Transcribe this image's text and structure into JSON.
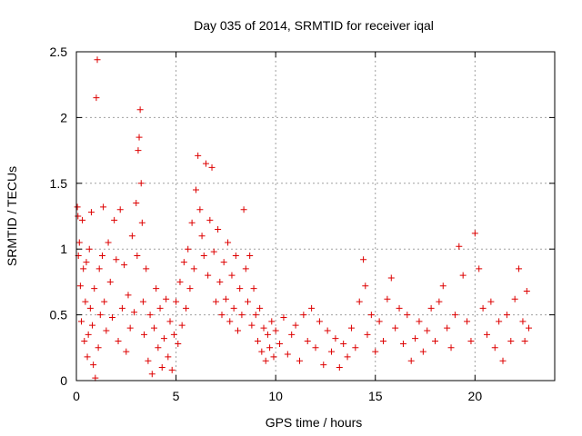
{
  "chart_data": {
    "type": "scatter",
    "title": "Day 035 of 2014, SRMTID for receiver iqal",
    "xlabel": "GPS time / hours",
    "ylabel": "SRMTID / TECUs",
    "xlim": [
      0,
      24
    ],
    "ylim": [
      0,
      2.5
    ],
    "xticks": [
      0,
      5,
      10,
      15,
      20
    ],
    "yticks": [
      0,
      0.5,
      1,
      1.5,
      2,
      2.5
    ],
    "xtick_labels": [
      "0",
      "5",
      "10",
      "15",
      "20"
    ],
    "ytick_labels": [
      "0",
      "0.5",
      "1",
      "1.5",
      "2",
      "2.5"
    ],
    "grid": true,
    "marker": "+",
    "color": "#dd0000",
    "series": [
      {
        "name": "SRMTID",
        "points": [
          [
            0.05,
            1.32
          ],
          [
            0.08,
            1.25
          ],
          [
            0.1,
            0.95
          ],
          [
            0.15,
            1.05
          ],
          [
            0.2,
            0.72
          ],
          [
            0.25,
            0.45
          ],
          [
            0.3,
            1.22
          ],
          [
            0.35,
            0.85
          ],
          [
            0.4,
            0.3
          ],
          [
            0.45,
            0.6
          ],
          [
            0.5,
            0.9
          ],
          [
            0.55,
            0.18
          ],
          [
            0.6,
            0.35
          ],
          [
            0.65,
            1.0
          ],
          [
            0.7,
            0.55
          ],
          [
            0.75,
            1.28
          ],
          [
            0.8,
            0.42
          ],
          [
            0.85,
            0.12
          ],
          [
            0.9,
            0.7
          ],
          [
            0.95,
            0.02
          ],
          [
            1.0,
            2.15
          ],
          [
            1.05,
            2.44
          ],
          [
            1.1,
            0.25
          ],
          [
            1.15,
            0.85
          ],
          [
            1.2,
            0.5
          ],
          [
            1.3,
            0.95
          ],
          [
            1.35,
            1.32
          ],
          [
            1.4,
            0.6
          ],
          [
            1.5,
            0.38
          ],
          [
            1.6,
            1.05
          ],
          [
            1.7,
            0.75
          ],
          [
            1.8,
            0.48
          ],
          [
            1.9,
            1.22
          ],
          [
            2.0,
            0.92
          ],
          [
            2.1,
            0.3
          ],
          [
            2.2,
            1.3
          ],
          [
            2.3,
            0.55
          ],
          [
            2.4,
            0.88
          ],
          [
            2.5,
            0.22
          ],
          [
            2.6,
            0.65
          ],
          [
            2.7,
            0.4
          ],
          [
            2.8,
            1.1
          ],
          [
            2.9,
            0.52
          ],
          [
            3.0,
            1.35
          ],
          [
            3.05,
            0.95
          ],
          [
            3.1,
            1.75
          ],
          [
            3.15,
            1.85
          ],
          [
            3.2,
            2.06
          ],
          [
            3.25,
            1.5
          ],
          [
            3.3,
            1.2
          ],
          [
            3.35,
            0.6
          ],
          [
            3.4,
            0.35
          ],
          [
            3.5,
            0.85
          ],
          [
            3.6,
            0.15
          ],
          [
            3.7,
            0.5
          ],
          [
            3.8,
            0.05
          ],
          [
            3.9,
            0.4
          ],
          [
            4.0,
            0.7
          ],
          [
            4.1,
            0.25
          ],
          [
            4.2,
            0.55
          ],
          [
            4.3,
            0.1
          ],
          [
            4.4,
            0.32
          ],
          [
            4.5,
            0.62
          ],
          [
            4.6,
            0.18
          ],
          [
            4.7,
            0.45
          ],
          [
            4.8,
            0.08
          ],
          [
            4.9,
            0.35
          ],
          [
            5.0,
            0.6
          ],
          [
            5.1,
            0.28
          ],
          [
            5.2,
            0.75
          ],
          [
            5.3,
            0.42
          ],
          [
            5.4,
            0.9
          ],
          [
            5.5,
            0.55
          ],
          [
            5.6,
            1.0
          ],
          [
            5.7,
            0.7
          ],
          [
            5.8,
            1.2
          ],
          [
            5.9,
            0.85
          ],
          [
            6.0,
            1.45
          ],
          [
            6.1,
            1.71
          ],
          [
            6.2,
            1.3
          ],
          [
            6.3,
            1.1
          ],
          [
            6.4,
            0.95
          ],
          [
            6.5,
            1.65
          ],
          [
            6.6,
            0.8
          ],
          [
            6.7,
            1.22
          ],
          [
            6.8,
            1.62
          ],
          [
            6.9,
            0.98
          ],
          [
            7.0,
            0.6
          ],
          [
            7.1,
            1.15
          ],
          [
            7.2,
            0.75
          ],
          [
            7.3,
            0.5
          ],
          [
            7.4,
            0.9
          ],
          [
            7.5,
            0.62
          ],
          [
            7.6,
            1.05
          ],
          [
            7.7,
            0.45
          ],
          [
            7.8,
            0.8
          ],
          [
            7.9,
            0.55
          ],
          [
            8.0,
            0.95
          ],
          [
            8.1,
            0.38
          ],
          [
            8.2,
            0.7
          ],
          [
            8.3,
            0.5
          ],
          [
            8.4,
            1.3
          ],
          [
            8.5,
            0.85
          ],
          [
            8.6,
            0.6
          ],
          [
            8.7,
            0.95
          ],
          [
            8.8,
            0.42
          ],
          [
            8.9,
            0.7
          ],
          [
            9.0,
            0.5
          ],
          [
            9.1,
            0.3
          ],
          [
            9.2,
            0.55
          ],
          [
            9.3,
            0.22
          ],
          [
            9.4,
            0.4
          ],
          [
            9.5,
            0.15
          ],
          [
            9.6,
            0.35
          ],
          [
            9.7,
            0.25
          ],
          [
            9.8,
            0.45
          ],
          [
            9.9,
            0.18
          ],
          [
            10.0,
            0.38
          ],
          [
            10.2,
            0.28
          ],
          [
            10.4,
            0.48
          ],
          [
            10.6,
            0.2
          ],
          [
            10.8,
            0.35
          ],
          [
            11.0,
            0.42
          ],
          [
            11.2,
            0.15
          ],
          [
            11.4,
            0.5
          ],
          [
            11.6,
            0.3
          ],
          [
            11.8,
            0.55
          ],
          [
            12.0,
            0.25
          ],
          [
            12.2,
            0.45
          ],
          [
            12.4,
            0.12
          ],
          [
            12.6,
            0.38
          ],
          [
            12.8,
            0.22
          ],
          [
            13.0,
            0.32
          ],
          [
            13.2,
            0.1
          ],
          [
            13.4,
            0.28
          ],
          [
            13.6,
            0.18
          ],
          [
            13.8,
            0.4
          ],
          [
            14.0,
            0.25
          ],
          [
            14.2,
            0.6
          ],
          [
            14.4,
            0.92
          ],
          [
            14.5,
            0.72
          ],
          [
            14.6,
            0.35
          ],
          [
            14.8,
            0.5
          ],
          [
            15.0,
            0.22
          ],
          [
            15.2,
            0.45
          ],
          [
            15.4,
            0.3
          ],
          [
            15.6,
            0.62
          ],
          [
            15.8,
            0.78
          ],
          [
            16.0,
            0.4
          ],
          [
            16.2,
            0.55
          ],
          [
            16.4,
            0.28
          ],
          [
            16.6,
            0.5
          ],
          [
            16.8,
            0.15
          ],
          [
            17.0,
            0.32
          ],
          [
            17.2,
            0.45
          ],
          [
            17.4,
            0.22
          ],
          [
            17.6,
            0.38
          ],
          [
            17.8,
            0.55
          ],
          [
            18.0,
            0.3
          ],
          [
            18.2,
            0.6
          ],
          [
            18.4,
            0.72
          ],
          [
            18.6,
            0.4
          ],
          [
            18.8,
            0.25
          ],
          [
            19.0,
            0.5
          ],
          [
            19.2,
            1.02
          ],
          [
            19.4,
            0.8
          ],
          [
            19.6,
            0.45
          ],
          [
            19.8,
            0.3
          ],
          [
            20.0,
            1.12
          ],
          [
            20.2,
            0.85
          ],
          [
            20.4,
            0.55
          ],
          [
            20.6,
            0.35
          ],
          [
            20.8,
            0.6
          ],
          [
            21.0,
            0.25
          ],
          [
            21.2,
            0.45
          ],
          [
            21.4,
            0.15
          ],
          [
            21.6,
            0.5
          ],
          [
            21.8,
            0.3
          ],
          [
            22.0,
            0.62
          ],
          [
            22.2,
            0.85
          ],
          [
            22.4,
            0.45
          ],
          [
            22.5,
            0.3
          ],
          [
            22.6,
            0.68
          ],
          [
            22.7,
            0.4
          ]
        ]
      }
    ]
  }
}
